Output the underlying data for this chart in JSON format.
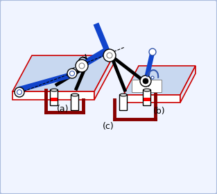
{
  "bg_color": "#f0f4ff",
  "border_color": "#aabbdd",
  "title_a": "(a)",
  "title_b": "(b)",
  "title_c": "(c)",
  "plate_fill": "#c8d8f0",
  "plate_edge": "#cc0000",
  "plate_white": "#ffffff",
  "blue_link": "#1144cc",
  "dark_red": "#880000",
  "label_fontsize": 9
}
